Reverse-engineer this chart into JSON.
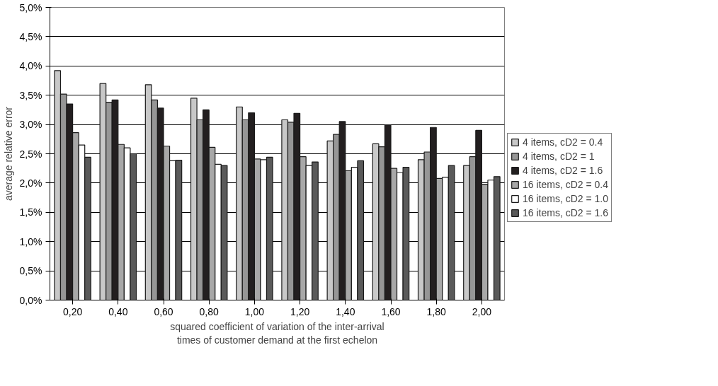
{
  "chart_data": {
    "type": "bar",
    "xlabel": "squared coefficient of variation of the inter-arrival\ntimes of customer demand at the first echelon",
    "ylabel": "average relative error",
    "categories": [
      "0,20",
      "0,40",
      "0,60",
      "0,80",
      "1,00",
      "1,20",
      "1,40",
      "1,60",
      "1,80",
      "2,00"
    ],
    "series": [
      {
        "name": "4 items, cD2 = 0.4",
        "color": "#c8c8c8",
        "values": [
          3.92,
          3.7,
          3.68,
          3.45,
          3.3,
          3.08,
          2.72,
          2.67,
          2.4,
          2.3
        ]
      },
      {
        "name": "4 items, cD2 = 1",
        "color": "#969696",
        "values": [
          3.52,
          3.38,
          3.42,
          3.08,
          3.08,
          3.04,
          2.83,
          2.62,
          2.53,
          2.45
        ]
      },
      {
        "name": "4 items, cD2 = 1.6",
        "color": "#231f20",
        "values": [
          3.35,
          3.42,
          3.28,
          3.25,
          3.2,
          3.19,
          3.05,
          2.99,
          2.95,
          2.9
        ]
      },
      {
        "name": "16 items, cD2 = 0.4",
        "color": "#a8a8a8",
        "values": [
          2.86,
          2.66,
          2.63,
          2.61,
          2.41,
          2.45,
          2.21,
          2.25,
          2.08,
          1.98
        ]
      },
      {
        "name": "16 items, cD2 = 1.0",
        "color": "#ffffff",
        "values": [
          2.65,
          2.6,
          2.38,
          2.32,
          2.4,
          2.3,
          2.27,
          2.18,
          2.1,
          2.05
        ]
      },
      {
        "name": "16 items, cD2 = 1.6",
        "color": "#5a5a5a",
        "values": [
          2.44,
          2.5,
          2.39,
          2.3,
          2.44,
          2.36,
          2.38,
          2.27,
          2.3,
          2.11
        ]
      }
    ],
    "ylim": [
      0,
      5
    ],
    "yticks": [
      {
        "value": 0,
        "label": "0,0%"
      },
      {
        "value": 0.5,
        "label": "0,5%"
      },
      {
        "value": 1,
        "label": "1,0%"
      },
      {
        "value": 1.5,
        "label": "1,5%"
      },
      {
        "value": 2,
        "label": "2,0%"
      },
      {
        "value": 2.5,
        "label": "2,5%"
      },
      {
        "value": 3,
        "label": "3,0%"
      },
      {
        "value": 3.5,
        "label": "3,5%"
      },
      {
        "value": 4,
        "label": "4,0%"
      },
      {
        "value": 4.5,
        "label": "4,5%"
      },
      {
        "value": 5,
        "label": "5,0%"
      }
    ],
    "grid": "y",
    "legend": "right"
  }
}
